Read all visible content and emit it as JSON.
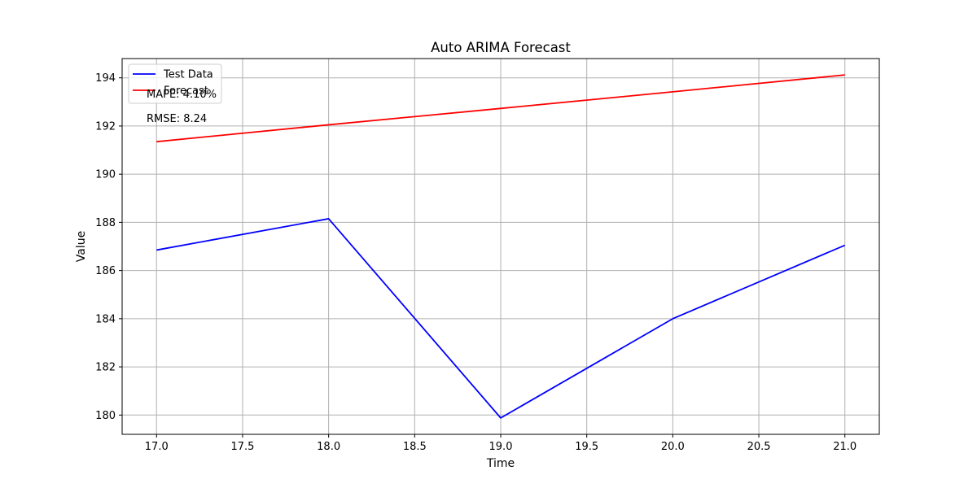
{
  "chart_data": {
    "type": "line",
    "title": "Auto ARIMA Forecast",
    "xlabel": "Time",
    "ylabel": "Value",
    "xlim": [
      16.8,
      21.2
    ],
    "ylim": [
      179.2,
      194.8
    ],
    "xticks": [
      17.0,
      17.5,
      18.0,
      18.5,
      19.0,
      19.5,
      20.0,
      20.5,
      21.0
    ],
    "xtick_labels": [
      "17.0",
      "17.5",
      "18.0",
      "18.5",
      "19.0",
      "19.5",
      "20.0",
      "20.5",
      "21.0"
    ],
    "yticks": [
      180,
      182,
      184,
      186,
      188,
      190,
      192,
      194
    ],
    "ytick_labels": [
      "180",
      "182",
      "184",
      "186",
      "188",
      "190",
      "192",
      "194"
    ],
    "grid": true,
    "legend_position": "upper-left",
    "series": [
      {
        "name": "Test Data",
        "color": "#0000ff",
        "x": [
          17,
          18,
          19,
          20,
          21
        ],
        "y": [
          186.85,
          188.15,
          179.88,
          184.0,
          187.05
        ]
      },
      {
        "name": "Forecast",
        "color": "#ff0000",
        "x": [
          17,
          18,
          19,
          20,
          21
        ],
        "y": [
          191.35,
          192.05,
          192.73,
          193.42,
          194.12
        ]
      }
    ],
    "annotations": [
      "MAPE: 4.10%",
      "RMSE: 8.24"
    ]
  }
}
